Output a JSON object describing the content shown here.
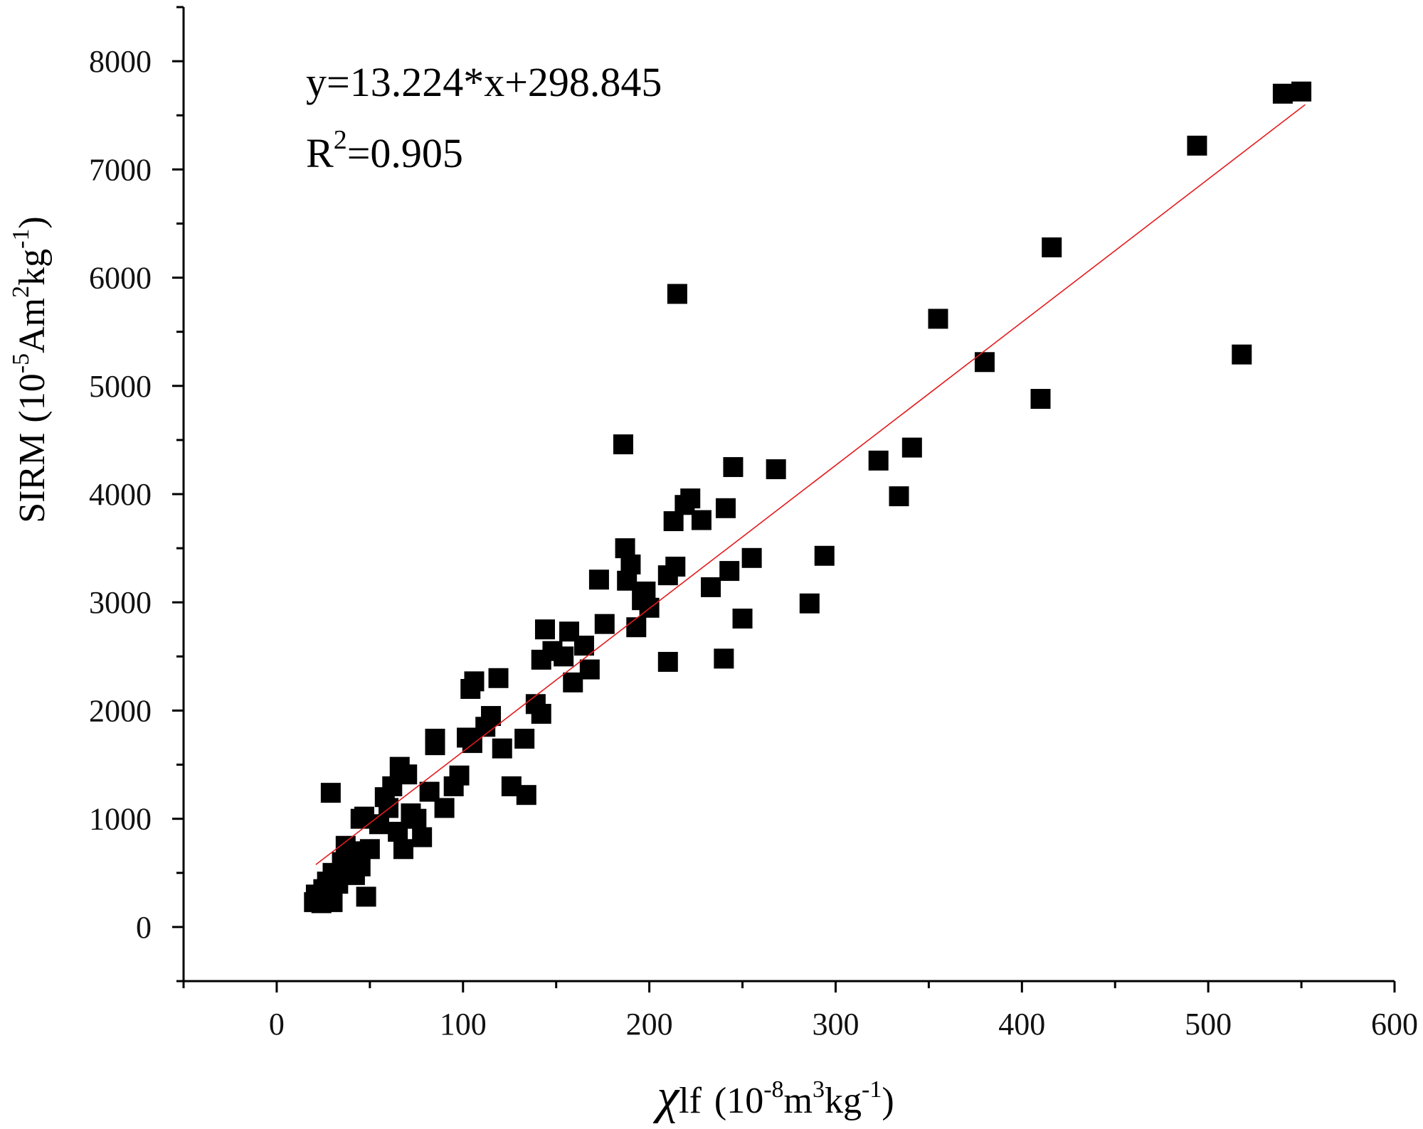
{
  "chart_data": {
    "type": "scatter",
    "xlabel": {
      "symbol": "χ",
      "main": "lf",
      "unit_prefix": "(10",
      "unit_exp1": "-8",
      "unit_mid": "m",
      "unit_exp2": "3",
      "unit_mid2": "kg",
      "unit_exp3": "-1",
      "unit_close": ")"
    },
    "ylabel": {
      "main": "SIRM",
      "unit_prefix": "(10",
      "unit_exp1": "-5",
      "unit_mid": "Am",
      "unit_exp2": "2",
      "unit_mid2": "kg",
      "unit_exp3": "-1",
      "unit_close": ")"
    },
    "xlim": [
      -50,
      600
    ],
    "ylim": [
      -500,
      8500
    ],
    "x_ticks": [
      0,
      100,
      200,
      300,
      400,
      500,
      600
    ],
    "y_ticks": [
      0,
      1000,
      2000,
      3000,
      4000,
      5000,
      6000,
      7000,
      8000
    ],
    "grid": false,
    "annotations": {
      "equation": "y=13.224*x+298.845",
      "r2_prefix": "R",
      "r2_exp": "2",
      "r2_value": "=0.905"
    },
    "fit_line": {
      "slope": 13.224,
      "intercept": 298.845,
      "x_range": [
        21,
        552
      ],
      "color": "#e41a1c"
    },
    "marker": {
      "shape": "square",
      "color": "#000000"
    },
    "points": [
      [
        20,
        230
      ],
      [
        22,
        250
      ],
      [
        24,
        220
      ],
      [
        21,
        300
      ],
      [
        25,
        350
      ],
      [
        27,
        420
      ],
      [
        28,
        380
      ],
      [
        30,
        500
      ],
      [
        32,
        450
      ],
      [
        35,
        600
      ],
      [
        30,
        230
      ],
      [
        37,
        750
      ],
      [
        40,
        700
      ],
      [
        43,
        650
      ],
      [
        45,
        560
      ],
      [
        48,
        280
      ],
      [
        50,
        720
      ],
      [
        38,
        520
      ],
      [
        33,
        400
      ],
      [
        42,
        480
      ],
      [
        29,
        1240
      ],
      [
        47,
        1020
      ],
      [
        58,
        1200
      ],
      [
        62,
        1300
      ],
      [
        66,
        1480
      ],
      [
        70,
        1410
      ],
      [
        75,
        1000
      ],
      [
        72,
        1050
      ],
      [
        65,
        880
      ],
      [
        68,
        720
      ],
      [
        78,
        830
      ],
      [
        82,
        1250
      ],
      [
        85,
        1740
      ],
      [
        85,
        1680
      ],
      [
        90,
        1100
      ],
      [
        95,
        1300
      ],
      [
        98,
        1400
      ],
      [
        102,
        1750
      ],
      [
        105,
        1700
      ],
      [
        104,
        2200
      ],
      [
        106,
        2270
      ],
      [
        112,
        1850
      ],
      [
        115,
        1950
      ],
      [
        119,
        2300
      ],
      [
        121,
        1650
      ],
      [
        126,
        1300
      ],
      [
        133,
        1740
      ],
      [
        134,
        1220
      ],
      [
        139,
        2060
      ],
      [
        142,
        1970
      ],
      [
        142,
        2470
      ],
      [
        144,
        2750
      ],
      [
        148,
        2550
      ],
      [
        154,
        2500
      ],
      [
        157,
        2730
      ],
      [
        159,
        2260
      ],
      [
        165,
        2600
      ],
      [
        168,
        2380
      ],
      [
        173,
        3210
      ],
      [
        176,
        2800
      ],
      [
        186,
        4460
      ],
      [
        187,
        3500
      ],
      [
        188,
        3200
      ],
      [
        190,
        3350
      ],
      [
        193,
        2770
      ],
      [
        196,
        3020
      ],
      [
        198,
        3100
      ],
      [
        200,
        2950
      ],
      [
        210,
        2450
      ],
      [
        210,
        3250
      ],
      [
        213,
        3750
      ],
      [
        214,
        3330
      ],
      [
        215,
        5850
      ],
      [
        219,
        3900
      ],
      [
        222,
        3960
      ],
      [
        228,
        3760
      ],
      [
        233,
        3140
      ],
      [
        240,
        2480
      ],
      [
        241,
        3870
      ],
      [
        243,
        3290
      ],
      [
        245,
        4250
      ],
      [
        250,
        2850
      ],
      [
        255,
        3410
      ],
      [
        268,
        4230
      ],
      [
        286,
        2990
      ],
      [
        294,
        3430
      ],
      [
        323,
        4310
      ],
      [
        334,
        3980
      ],
      [
        341,
        4430
      ],
      [
        355,
        5620
      ],
      [
        380,
        5220
      ],
      [
        410,
        4880
      ],
      [
        416,
        6280
      ],
      [
        494,
        7220
      ],
      [
        518,
        5290
      ],
      [
        540,
        7700
      ],
      [
        550,
        7720
      ],
      [
        45,
        1000
      ],
      [
        60,
        1100
      ],
      [
        55,
        950
      ]
    ]
  }
}
